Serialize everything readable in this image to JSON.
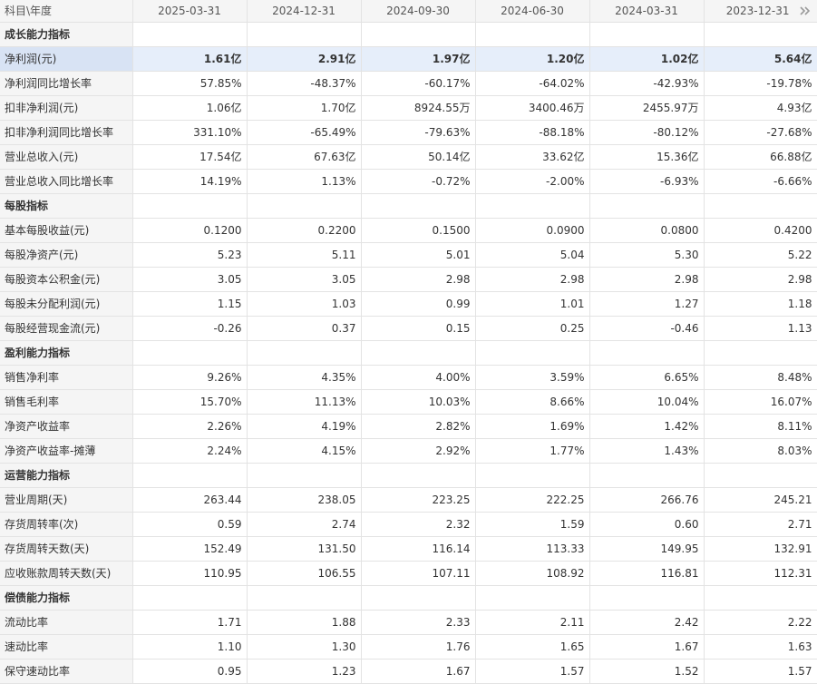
{
  "header": {
    "corner_label": "科目\\年度",
    "columns": [
      "2025-03-31",
      "2024-12-31",
      "2024-09-30",
      "2024-06-30",
      "2024-03-31",
      "2023-12-31"
    ],
    "more_icon": "double-chevron-right-icon"
  },
  "rows": [
    {
      "type": "section",
      "label": "成长能力指标"
    },
    {
      "type": "data",
      "label": "净利润(元)",
      "highlight": true,
      "values": [
        "1.61亿",
        "2.91亿",
        "1.97亿",
        "1.20亿",
        "1.02亿",
        "5.64亿"
      ]
    },
    {
      "type": "data",
      "label": "净利润同比增长率",
      "values": [
        "57.85%",
        "-48.37%",
        "-60.17%",
        "-64.02%",
        "-42.93%",
        "-19.78%"
      ]
    },
    {
      "type": "data",
      "label": "扣非净利润(元)",
      "values": [
        "1.06亿",
        "1.70亿",
        "8924.55万",
        "3400.46万",
        "2455.97万",
        "4.93亿"
      ]
    },
    {
      "type": "data",
      "label": "扣非净利润同比增长率",
      "values": [
        "331.10%",
        "-65.49%",
        "-79.63%",
        "-88.18%",
        "-80.12%",
        "-27.68%"
      ]
    },
    {
      "type": "data",
      "label": "营业总收入(元)",
      "values": [
        "17.54亿",
        "67.63亿",
        "50.14亿",
        "33.62亿",
        "15.36亿",
        "66.88亿"
      ]
    },
    {
      "type": "data",
      "label": "营业总收入同比增长率",
      "values": [
        "14.19%",
        "1.13%",
        "-0.72%",
        "-2.00%",
        "-6.93%",
        "-6.66%"
      ]
    },
    {
      "type": "section",
      "label": "每股指标"
    },
    {
      "type": "data",
      "label": "基本每股收益(元)",
      "values": [
        "0.1200",
        "0.2200",
        "0.1500",
        "0.0900",
        "0.0800",
        "0.4200"
      ]
    },
    {
      "type": "data",
      "label": "每股净资产(元)",
      "values": [
        "5.23",
        "5.11",
        "5.01",
        "5.04",
        "5.30",
        "5.22"
      ]
    },
    {
      "type": "data",
      "label": "每股资本公积金(元)",
      "values": [
        "3.05",
        "3.05",
        "2.98",
        "2.98",
        "2.98",
        "2.98"
      ]
    },
    {
      "type": "data",
      "label": "每股未分配利润(元)",
      "values": [
        "1.15",
        "1.03",
        "0.99",
        "1.01",
        "1.27",
        "1.18"
      ]
    },
    {
      "type": "data",
      "label": "每股经营现金流(元)",
      "values": [
        "-0.26",
        "0.37",
        "0.15",
        "0.25",
        "-0.46",
        "1.13"
      ]
    },
    {
      "type": "section",
      "label": "盈利能力指标"
    },
    {
      "type": "data",
      "label": "销售净利率",
      "values": [
        "9.26%",
        "4.35%",
        "4.00%",
        "3.59%",
        "6.65%",
        "8.48%"
      ]
    },
    {
      "type": "data",
      "label": "销售毛利率",
      "values": [
        "15.70%",
        "11.13%",
        "10.03%",
        "8.66%",
        "10.04%",
        "16.07%"
      ]
    },
    {
      "type": "data",
      "label": "净资产收益率",
      "values": [
        "2.26%",
        "4.19%",
        "2.82%",
        "1.69%",
        "1.42%",
        "8.11%"
      ]
    },
    {
      "type": "data",
      "label": "净资产收益率-摊薄",
      "values": [
        "2.24%",
        "4.15%",
        "2.92%",
        "1.77%",
        "1.43%",
        "8.03%"
      ]
    },
    {
      "type": "section",
      "label": "运营能力指标"
    },
    {
      "type": "data",
      "label": "营业周期(天)",
      "values": [
        "263.44",
        "238.05",
        "223.25",
        "222.25",
        "266.76",
        "245.21"
      ]
    },
    {
      "type": "data",
      "label": "存货周转率(次)",
      "values": [
        "0.59",
        "2.74",
        "2.32",
        "1.59",
        "0.60",
        "2.71"
      ]
    },
    {
      "type": "data",
      "label": "存货周转天数(天)",
      "values": [
        "152.49",
        "131.50",
        "116.14",
        "113.33",
        "149.95",
        "132.91"
      ]
    },
    {
      "type": "data",
      "label": "应收账款周转天数(天)",
      "values": [
        "110.95",
        "106.55",
        "107.11",
        "108.92",
        "116.81",
        "112.31"
      ]
    },
    {
      "type": "section",
      "label": "偿债能力指标"
    },
    {
      "type": "data",
      "label": "流动比率",
      "values": [
        "1.71",
        "1.88",
        "2.33",
        "2.11",
        "2.42",
        "2.22"
      ]
    },
    {
      "type": "data",
      "label": "速动比率",
      "values": [
        "1.10",
        "1.30",
        "1.76",
        "1.65",
        "1.67",
        "1.63"
      ]
    },
    {
      "type": "data",
      "label": "保守速动比率",
      "values": [
        "0.95",
        "1.23",
        "1.67",
        "1.57",
        "1.52",
        "1.57"
      ]
    }
  ]
}
